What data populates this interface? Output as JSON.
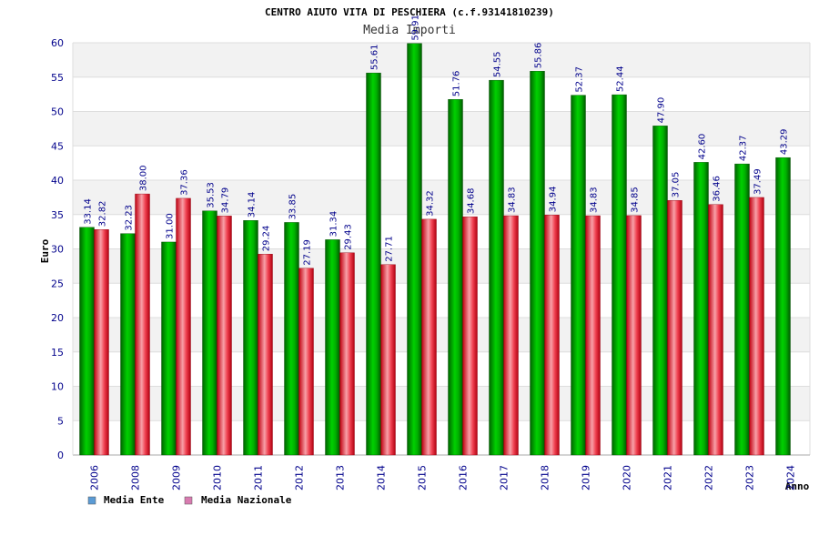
{
  "chart_data": {
    "type": "bar",
    "title": "CENTRO AIUTO VITA DI PESCHIERA (c.f.93141810239)",
    "subtitle": "Media Importi",
    "ylabel": "Euro",
    "xlabel": "Anno",
    "ylim": [
      0,
      60
    ],
    "yticks": [
      0,
      5,
      10,
      15,
      20,
      25,
      30,
      35,
      40,
      45,
      50,
      55,
      60
    ],
    "categories": [
      "2006",
      "2008",
      "2009",
      "2010",
      "2011",
      "2012",
      "2013",
      "2014",
      "2015",
      "2016",
      "2017",
      "2018",
      "2019",
      "2020",
      "2021",
      "2022",
      "2023",
      "2024"
    ],
    "series": [
      {
        "name": "Media Ente",
        "color": "#00a000",
        "values": [
          33.14,
          32.23,
          31.0,
          35.53,
          34.14,
          33.85,
          31.34,
          55.61,
          59.91,
          51.76,
          54.55,
          55.86,
          52.37,
          52.44,
          47.9,
          42.6,
          42.37,
          43.29
        ],
        "labels": [
          "33.14",
          "32.23",
          "31.00",
          "35.53",
          "34.14",
          "33.85",
          "31.34",
          "55.61",
          "59.91",
          "51.76",
          "54.55",
          "55.86",
          "52.37",
          "52.44",
          "47.90",
          "42.60",
          "42.37",
          "43.29"
        ]
      },
      {
        "name": "Media Nazionale",
        "color": "#e8202a",
        "values": [
          32.82,
          38.0,
          37.36,
          34.79,
          29.24,
          27.19,
          29.43,
          27.71,
          34.32,
          34.68,
          34.83,
          34.94,
          34.83,
          34.85,
          37.05,
          36.46,
          37.49,
          null
        ],
        "labels": [
          "32.82",
          "38.00",
          "37.36",
          "34.79",
          "29.24",
          "27.19",
          "29.43",
          "27.71",
          "34.32",
          "34.68",
          "34.83",
          "34.94",
          "34.83",
          "34.85",
          "37.05",
          "36.46",
          "37.49",
          null
        ]
      }
    ],
    "legend": {
      "placement": "bottom-left",
      "items": [
        {
          "label": "Media Ente",
          "swatch": "#5b9bd5"
        },
        {
          "label": "Media Nazionale",
          "swatch": "#d87bb0"
        }
      ]
    },
    "grid": true
  }
}
